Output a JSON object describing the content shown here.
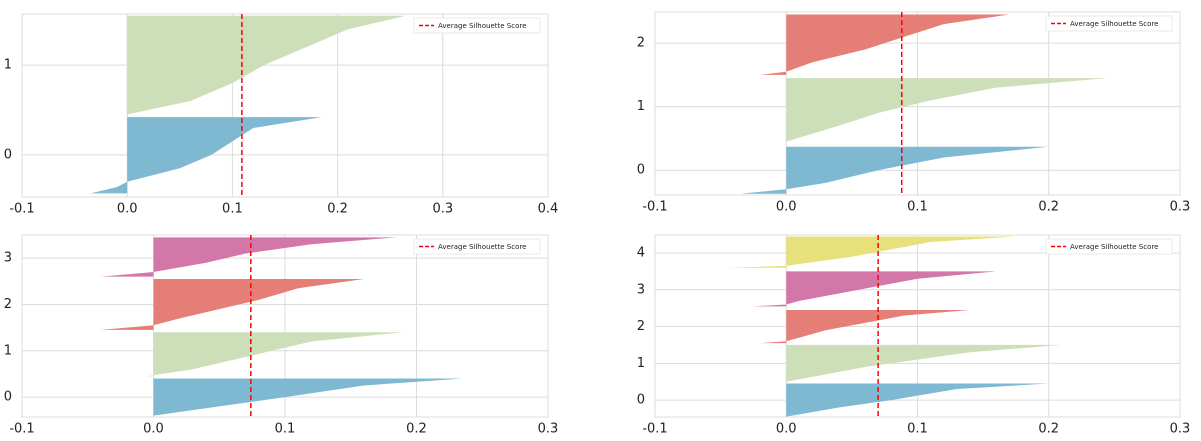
{
  "chart_data": [
    {
      "type": "silhouette",
      "xlim": [
        -0.1,
        0.4
      ],
      "ylim": [
        -0.47,
        1.57
      ],
      "xticks": [
        -0.1,
        {
          "value": 0,
          "label": "0.0"
        },
        0.1,
        0.2,
        0.3,
        0.4
      ],
      "yticks": [
        0,
        1
      ],
      "grid": true,
      "legend": "upper right",
      "avg": {
        "name": "Average Silhouette Score",
        "value": 0.109,
        "color": "#ff0000"
      },
      "series": [
        {
          "color": "#7fb8d1",
          "y": [
            0.42,
            0.3,
            0.15,
            0,
            -0.15,
            -0.3,
            -0.36,
            -0.43
          ],
          "values": [
            0.185,
            0.12,
            0.1,
            0.08,
            0.05,
            0.0,
            -0.01,
            -0.035
          ]
        },
        {
          "color": "#cddfb8",
          "y": [
            1.55,
            1.4,
            1.2,
            1.0,
            0.8,
            0.6,
            0.45
          ],
          "values": [
            0.265,
            0.21,
            0.17,
            0.13,
            0.1,
            0.06,
            0.0
          ]
        }
      ]
    },
    {
      "type": "silhouette",
      "xlim": [
        -0.1,
        0.3
      ],
      "ylim": [
        -0.39,
        2.49
      ],
      "xticks": [
        -0.1,
        {
          "value": 0,
          "label": "0.0"
        },
        0.1,
        0.2,
        0.3
      ],
      "yticks": [
        0,
        1,
        2
      ],
      "grid": true,
      "legend": "upper right",
      "avg": {
        "name": "Average Silhouette Score",
        "value": 0.088,
        "color": "#ff0000"
      },
      "series": [
        {
          "color": "#7fb8d1",
          "y": [
            0.37,
            0.2,
            0,
            -0.2,
            -0.3,
            -0.37
          ],
          "values": [
            0.2,
            0.12,
            0.07,
            0.03,
            0,
            -0.035
          ]
        },
        {
          "color": "#cddfb8",
          "y": [
            1.45,
            1.3,
            1.1,
            0.9,
            0.7,
            0.45
          ],
          "values": [
            0.245,
            0.16,
            0.11,
            0.07,
            0.04,
            0.0
          ]
        },
        {
          "color": "#e57e76",
          "y": [
            2.45,
            2.3,
            2.1,
            1.9,
            1.7,
            1.55,
            1.5
          ],
          "values": [
            0.17,
            0.12,
            0.09,
            0.06,
            0.02,
            0.0,
            -0.02
          ]
        }
      ]
    },
    {
      "type": "silhouette",
      "xlim": [
        -0.1,
        0.3
      ],
      "ylim": [
        -0.43,
        3.5
      ],
      "xticks": [
        -0.1,
        {
          "value": 0,
          "label": "0.0"
        },
        0.1,
        0.2,
        0.3
      ],
      "yticks": [
        0,
        1,
        2,
        3
      ],
      "grid": true,
      "legend": "upper right",
      "avg": {
        "name": "Average Silhouette Score",
        "value": 0.074,
        "color": "#ff0000"
      },
      "series": [
        {
          "color": "#7fb8d1",
          "y": [
            0.4,
            0.25,
            0,
            -0.2,
            -0.4
          ],
          "values": [
            0.235,
            0.16,
            0.1,
            0.05,
            0
          ]
        },
        {
          "color": "#cddfb8",
          "y": [
            1.4,
            1.2,
            1.0,
            0.8,
            0.6,
            0.45
          ],
          "values": [
            0.19,
            0.12,
            0.09,
            0.06,
            0.03,
            -0.005
          ]
        },
        {
          "color": "#e57e76",
          "y": [
            2.55,
            2.35,
            2.1,
            1.9,
            1.7,
            1.55,
            1.45
          ],
          "values": [
            0.16,
            0.11,
            0.08,
            0.05,
            0.02,
            0,
            -0.04
          ]
        },
        {
          "color": "#d377a8",
          "y": [
            3.45,
            3.3,
            3.1,
            2.9,
            2.7,
            2.6
          ],
          "values": [
            0.185,
            0.12,
            0.07,
            0.04,
            0,
            -0.04
          ]
        }
      ]
    },
    {
      "type": "silhouette",
      "xlim": [
        -0.1,
        0.3
      ],
      "ylim": [
        -0.46,
        4.49
      ],
      "xticks": [
        -0.1,
        {
          "value": 0,
          "label": "0.0"
        },
        0.1,
        0.2,
        0.3
      ],
      "yticks": [
        0,
        1,
        2,
        3,
        4
      ],
      "grid": true,
      "legend": "upper right",
      "avg": {
        "name": "Average Silhouette Score",
        "value": 0.07,
        "color": "#ff0000"
      },
      "series": [
        {
          "color": "#7fb8d1",
          "y": [
            0.45,
            0.3,
            0,
            -0.2,
            -0.45
          ],
          "values": [
            0.2,
            0.13,
            0.08,
            0.04,
            0
          ]
        },
        {
          "color": "#cddfb8",
          "y": [
            1.5,
            1.3,
            1.1,
            0.9,
            0.7,
            0.5
          ],
          "values": [
            0.21,
            0.14,
            0.1,
            0.06,
            0.03,
            0
          ]
        },
        {
          "color": "#e57e76",
          "y": [
            2.45,
            2.3,
            2.1,
            1.9,
            1.7,
            1.6,
            1.55
          ],
          "values": [
            0.14,
            0.09,
            0.06,
            0.03,
            0.01,
            0,
            -0.02
          ]
        },
        {
          "color": "#d377a8",
          "y": [
            3.5,
            3.3,
            3.1,
            2.9,
            2.7,
            2.6,
            2.55
          ],
          "values": [
            0.16,
            0.1,
            0.07,
            0.04,
            0.01,
            0,
            -0.025
          ]
        },
        {
          "color": "#e8e07a",
          "y": [
            4.45,
            4.3,
            4.1,
            3.9,
            3.7,
            3.65,
            3.6
          ],
          "values": [
            0.175,
            0.11,
            0.08,
            0.05,
            0.01,
            0,
            -0.045
          ]
        }
      ]
    }
  ]
}
